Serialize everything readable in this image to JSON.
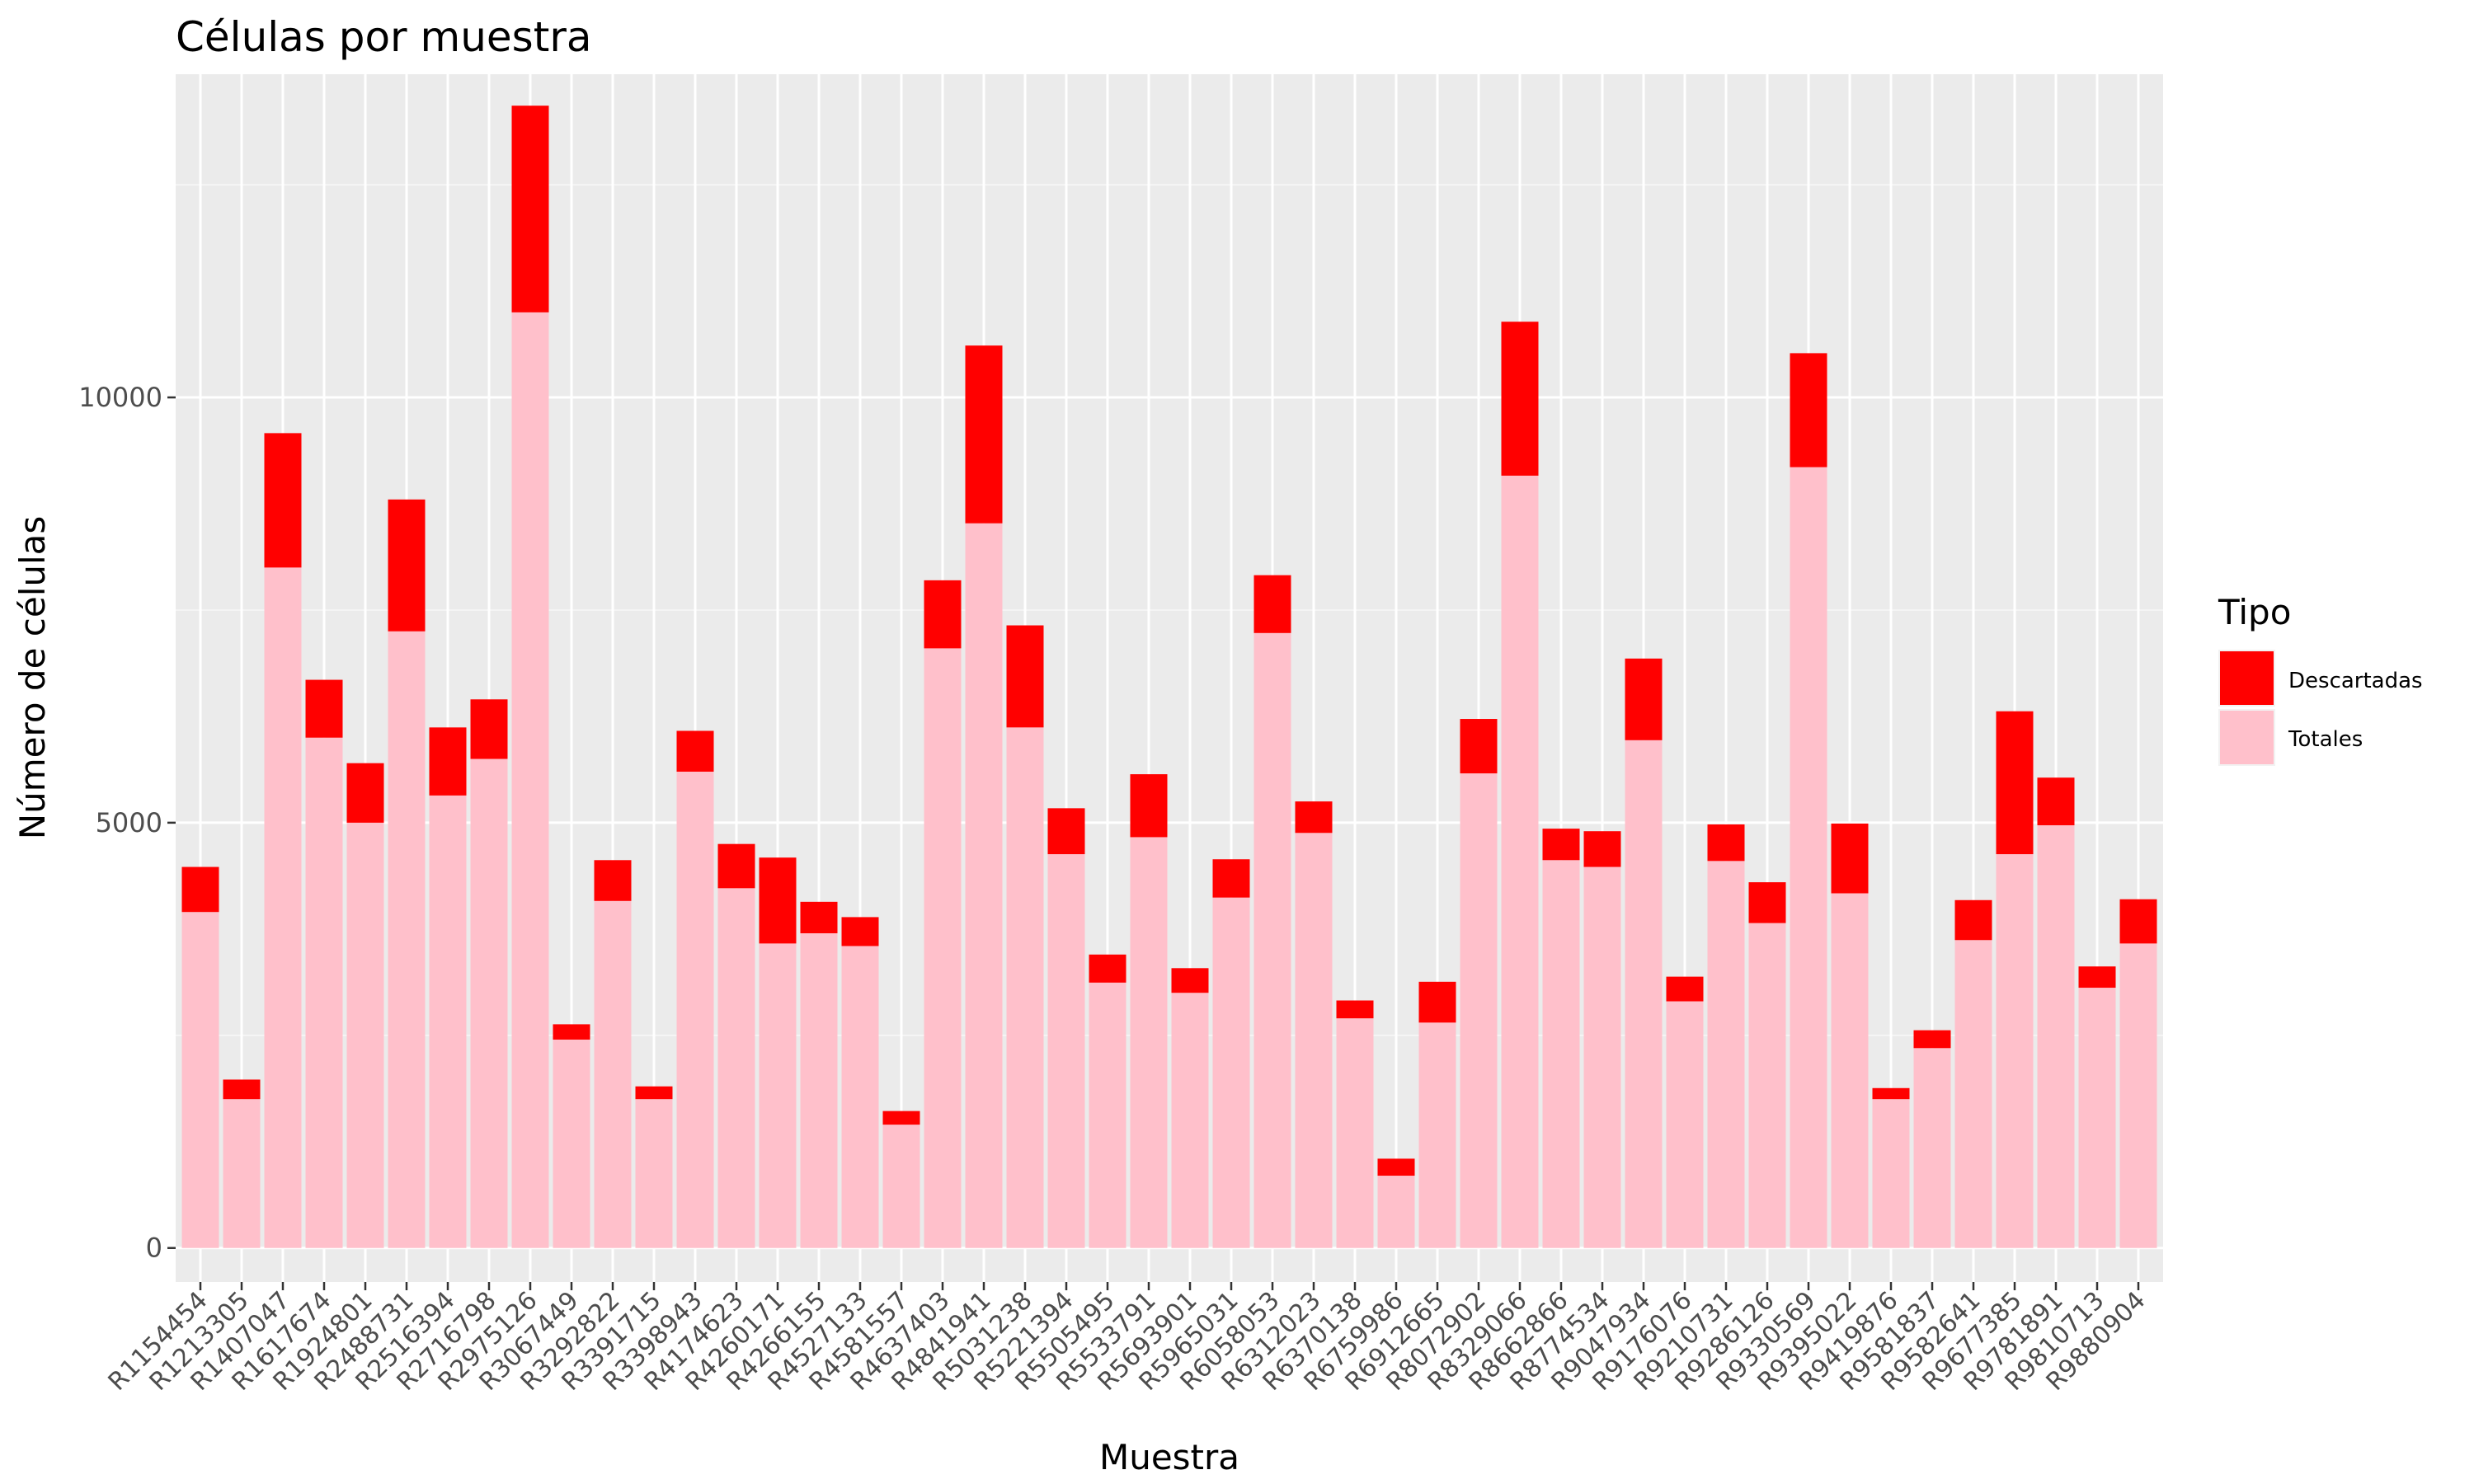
{
  "chart_data": {
    "type": "bar",
    "stacked": true,
    "title": "Células por muestra",
    "xlabel": "Muestra",
    "ylabel": "Número de células",
    "ylim": [
      -400,
      13800
    ],
    "yticks": [
      0,
      5000,
      10000
    ],
    "grid": true,
    "legend": {
      "title": "Tipo",
      "position": "right"
    },
    "categories": [
      "R1154454",
      "R1213305",
      "R1407047",
      "R1617674",
      "R1924801",
      "R2488731",
      "R2516394",
      "R2716798",
      "R2975126",
      "R3067449",
      "R3292822",
      "R3391715",
      "R3398943",
      "R4174623",
      "R4260171",
      "R4266155",
      "R4527133",
      "R4581557",
      "R4637403",
      "R4841941",
      "R5031238",
      "R5221394",
      "R5505495",
      "R5533791",
      "R5693901",
      "R5965031",
      "R6058053",
      "R6312023",
      "R6370138",
      "R6759986",
      "R6912665",
      "R8072902",
      "R8329066",
      "R8662866",
      "R8774534",
      "R9047934",
      "R9176076",
      "R9210731",
      "R9286126",
      "R9330569",
      "R9395022",
      "R9419876",
      "R9581837",
      "R9582641",
      "R9677385",
      "R9781891",
      "R9810713",
      "R9880904"
    ],
    "series": [
      {
        "name": "Totales",
        "color": "#FFC0CB",
        "values": [
          3950,
          1750,
          8000,
          6000,
          5000,
          7250,
          5320,
          5750,
          11000,
          2450,
          4080,
          1750,
          5600,
          4230,
          3580,
          3700,
          3550,
          1450,
          7050,
          8520,
          6120,
          4630,
          3120,
          4830,
          3000,
          4120,
          7230,
          4880,
          2700,
          850,
          2650,
          5580,
          9080,
          4560,
          4480,
          5970,
          2900,
          4550,
          3820,
          9180,
          4170,
          1750,
          2350,
          3620,
          4630,
          4970,
          3060,
          3580
        ]
      },
      {
        "name": "Descartadas",
        "color": "#FF0000",
        "values": [
          530,
          230,
          1580,
          680,
          700,
          1550,
          800,
          700,
          2430,
          180,
          480,
          150,
          480,
          520,
          1010,
          370,
          340,
          160,
          800,
          2090,
          1200,
          540,
          330,
          740,
          290,
          450,
          680,
          370,
          210,
          200,
          480,
          640,
          1810,
          370,
          420,
          960,
          290,
          430,
          480,
          1340,
          820,
          130,
          210,
          470,
          1680,
          560,
          250,
          520
        ]
      }
    ]
  }
}
